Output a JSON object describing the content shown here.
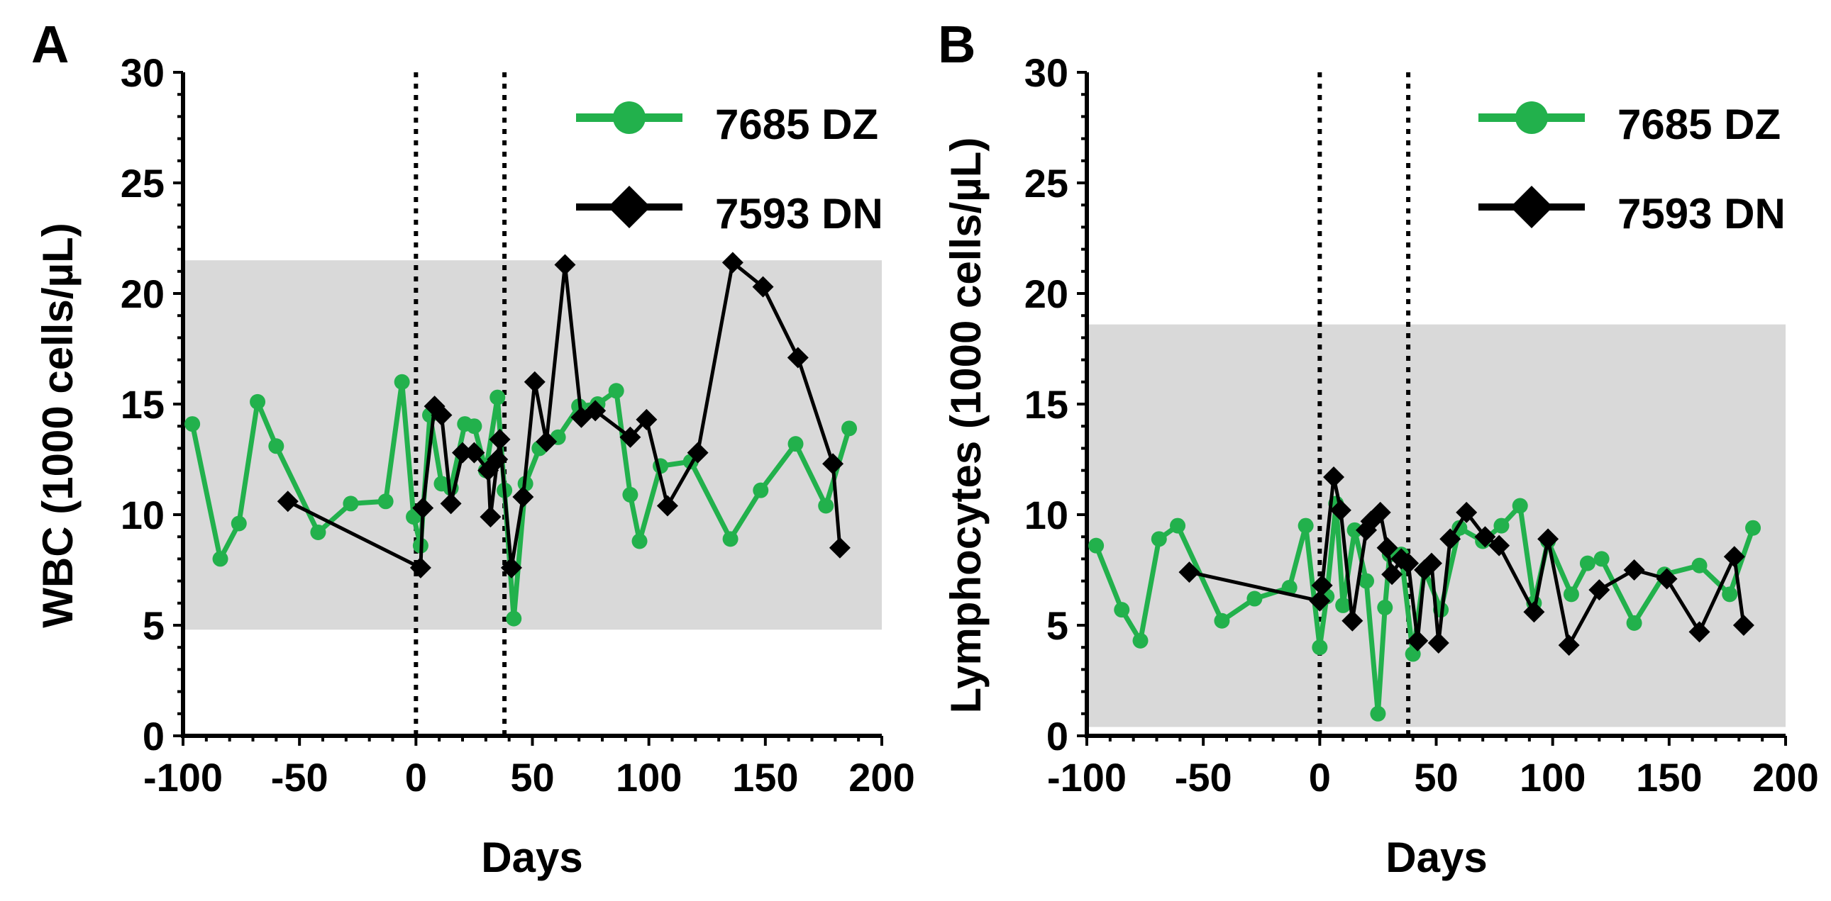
{
  "colors": {
    "dz": "#22B14C",
    "dn": "#000000",
    "normal_range_band": "#D9D9D9",
    "axis": "#000000"
  },
  "chart_data": [
    {
      "type": "line",
      "panel_label": "A",
      "xlabel": "Days",
      "ylabel": "WBC (1000 cells/µL)",
      "xlim": [
        -100,
        200
      ],
      "ylim": [
        0,
        30
      ],
      "x_ticks": [
        -100,
        -50,
        0,
        50,
        100,
        150,
        200
      ],
      "y_ticks": [
        0,
        5,
        10,
        15,
        20,
        25,
        30
      ],
      "normal_range": [
        4.8,
        21.5
      ],
      "vertical_lines": [
        0,
        38
      ],
      "legend": {
        "position": "top-right",
        "entries": [
          "7685 DZ",
          "7593 DN"
        ]
      },
      "series": [
        {
          "name": "7685 DZ",
          "color_key": "dz",
          "marker": "circle",
          "x": [
            -96,
            -84,
            -76,
            -68,
            -60,
            -42,
            -28,
            -13,
            -6,
            -1,
            2,
            6,
            11,
            15,
            21,
            25,
            30,
            35,
            38,
            42,
            47,
            53,
            61,
            70,
            78,
            86,
            92,
            96,
            105,
            118,
            135,
            148,
            163,
            176,
            186
          ],
          "y": [
            14.1,
            8.0,
            9.6,
            15.1,
            13.1,
            9.2,
            10.5,
            10.6,
            16.0,
            9.9,
            8.6,
            14.5,
            11.4,
            11.2,
            14.1,
            14.0,
            12.0,
            15.3,
            11.1,
            5.3,
            11.4,
            13.0,
            13.5,
            14.9,
            15.0,
            15.6,
            10.9,
            8.8,
            12.2,
            12.4,
            8.9,
            11.1,
            13.2,
            10.4,
            13.9
          ]
        },
        {
          "name": "7593 DN",
          "color_key": "dn",
          "marker": "diamond",
          "x": [
            -55,
            2,
            3,
            8,
            11,
            15,
            20,
            25,
            31,
            32,
            35,
            36,
            41,
            46,
            51,
            56,
            64,
            71,
            77,
            92,
            99,
            108,
            121,
            136,
            149,
            164,
            179,
            182
          ],
          "y": [
            10.6,
            7.6,
            10.3,
            14.9,
            14.5,
            10.5,
            12.8,
            12.8,
            12.0,
            9.9,
            12.5,
            13.4,
            7.6,
            10.8,
            16.0,
            13.3,
            21.3,
            14.4,
            14.7,
            13.5,
            14.3,
            10.4,
            12.8,
            21.4,
            20.3,
            17.1,
            12.3,
            8.5
          ]
        }
      ]
    },
    {
      "type": "line",
      "panel_label": "B",
      "xlabel": "Days",
      "ylabel": "Lymphocytes (1000 cells/µL)",
      "xlim": [
        -100,
        200
      ],
      "ylim": [
        0,
        30
      ],
      "x_ticks": [
        -100,
        -50,
        0,
        50,
        100,
        150,
        200
      ],
      "y_ticks": [
        0,
        5,
        10,
        15,
        20,
        25,
        30
      ],
      "normal_range": [
        0.4,
        18.6
      ],
      "vertical_lines": [
        0,
        38
      ],
      "legend": {
        "position": "top-right",
        "entries": [
          "7685 DZ",
          "7593 DN"
        ]
      },
      "series": [
        {
          "name": "7685 DZ",
          "color_key": "dz",
          "marker": "circle",
          "x": [
            -96,
            -85,
            -77,
            -69,
            -61,
            -42,
            -28,
            -13,
            -6,
            0,
            3,
            7,
            10,
            15,
            20,
            25,
            28,
            30,
            35,
            40,
            45,
            52,
            60,
            70,
            78,
            86,
            92,
            98,
            108,
            115,
            121,
            135,
            148,
            163,
            176,
            186
          ],
          "y": [
            8.6,
            5.7,
            4.3,
            8.9,
            9.5,
            5.2,
            6.2,
            6.7,
            9.5,
            4.0,
            6.3,
            10.5,
            5.9,
            9.3,
            7.0,
            1.0,
            5.8,
            8.2,
            8.2,
            3.7,
            7.5,
            5.7,
            9.4,
            8.8,
            9.5,
            10.4,
            6.0,
            8.8,
            6.4,
            7.8,
            8.0,
            5.1,
            7.3,
            7.7,
            6.4,
            9.4
          ]
        },
        {
          "name": "7593 DN",
          "color_key": "dn",
          "marker": "diamond",
          "x": [
            -56,
            0,
            1,
            6,
            9,
            14,
            20,
            22,
            26,
            29,
            31,
            35,
            38,
            42,
            45,
            48,
            51,
            56,
            63,
            71,
            77,
            92,
            98,
            107,
            120,
            135,
            149,
            163,
            178,
            182
          ],
          "y": [
            7.4,
            6.1,
            6.8,
            11.7,
            10.2,
            5.2,
            9.3,
            9.7,
            10.1,
            8.5,
            7.3,
            8.0,
            7.8,
            4.3,
            7.5,
            7.8,
            4.2,
            8.9,
            10.1,
            9.0,
            8.6,
            5.6,
            8.9,
            4.1,
            6.6,
            7.5,
            7.1,
            4.7,
            8.1,
            5.0
          ]
        }
      ]
    }
  ]
}
